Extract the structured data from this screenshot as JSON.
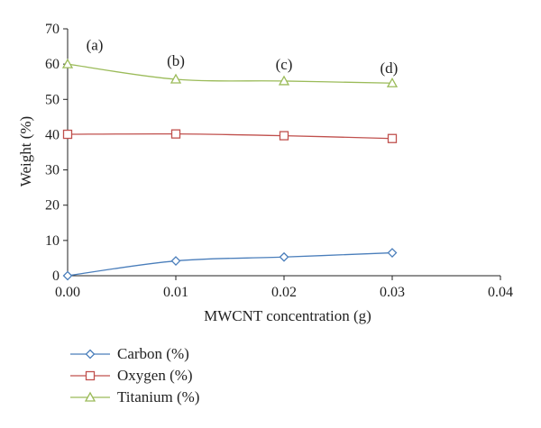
{
  "chart_data": {
    "type": "line",
    "xlabel": "MWCNT concentration (g)",
    "ylabel": "Weight  (%)",
    "xlim": [
      0,
      0.04
    ],
    "ylim": [
      0,
      70
    ],
    "x_ticks": [
      "0.00",
      "0.01",
      "0.02",
      "0.03",
      "0.04"
    ],
    "y_ticks": [
      "0",
      "10",
      "20",
      "30",
      "40",
      "50",
      "60",
      "70"
    ],
    "x": [
      0.0,
      0.01,
      0.02,
      0.03
    ],
    "series": [
      {
        "name": "Carbon (%)",
        "marker": "diamond",
        "color": "#4a7ebb",
        "values": [
          0.0,
          4.2,
          5.3,
          6.5
        ]
      },
      {
        "name": "Oxygen (%)",
        "marker": "square",
        "color": "#c0504d",
        "values": [
          40.1,
          40.2,
          39.7,
          38.9
        ]
      },
      {
        "name": "Titanium (%)",
        "marker": "triangle",
        "color": "#9bbb59",
        "values": [
          60.0,
          55.7,
          55.2,
          54.6
        ]
      }
    ],
    "annotations": [
      {
        "text": "(a)",
        "x": 0.0025,
        "y": 64
      },
      {
        "text": "(b)",
        "x": 0.01,
        "y": 59.5
      },
      {
        "text": "(c)",
        "x": 0.02,
        "y": 58.5
      },
      {
        "text": "(d)",
        "x": 0.0297,
        "y": 57.5
      }
    ],
    "legend_position": "bottom-left",
    "grid": false
  }
}
